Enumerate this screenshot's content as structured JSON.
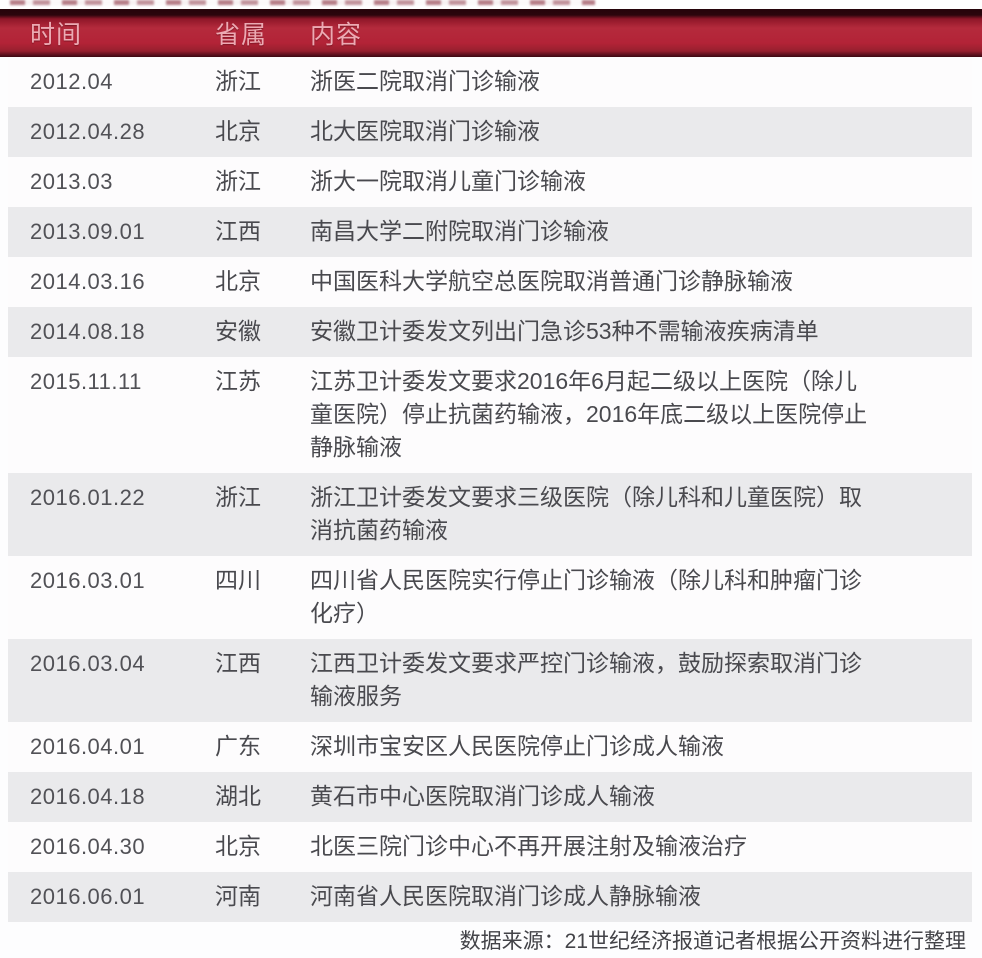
{
  "colors": {
    "header_bar": "#b42a3c",
    "header_bar_edge": "#2c050c",
    "header_text": "#ecaab3",
    "row_base": "#fdfcfd",
    "row_alt": "#eaeaec",
    "body_text": "#49494e",
    "source_text": "#434348"
  },
  "chart_data": {
    "type": "table",
    "columns": [
      "时间",
      "省属",
      "内容"
    ],
    "rows": [
      {
        "date": "2012.04",
        "province": "浙江",
        "content": "浙医二院取消门诊输液"
      },
      {
        "date": "2012.04.28",
        "province": "北京",
        "content": "北大医院取消门诊输液"
      },
      {
        "date": "2013.03",
        "province": "浙江",
        "content": "浙大一院取消儿童门诊输液"
      },
      {
        "date": "2013.09.01",
        "province": "江西",
        "content": "南昌大学二附院取消门诊输液"
      },
      {
        "date": "2014.03.16",
        "province": "北京",
        "content": "中国医科大学航空总医院取消普通门诊静脉输液"
      },
      {
        "date": "2014.08.18",
        "province": "安徽",
        "content": "安徽卫计委发文列出门急诊53种不需输液疾病清单"
      },
      {
        "date": "2015.11.11",
        "province": "江苏",
        "content": "江苏卫计委发文要求2016年6月起二级以上医院（除儿童医院）停止抗菌药输液，2016年底二级以上医院停止静脉输液"
      },
      {
        "date": "2016.01.22",
        "province": "浙江",
        "content": "浙江卫计委发文要求三级医院（除儿科和儿童医院）取消抗菌药输液"
      },
      {
        "date": "2016.03.01",
        "province": "四川",
        "content": "四川省人民医院实行停止门诊输液（除儿科和肿瘤门诊化疗）"
      },
      {
        "date": "2016.03.04",
        "province": "江西",
        "content": "江西卫计委发文要求严控门诊输液，鼓励探索取消门诊输液服务"
      },
      {
        "date": "2016.04.01",
        "province": "广东",
        "content": "深圳市宝安区人民医院停止门诊成人输液"
      },
      {
        "date": "2016.04.18",
        "province": "湖北",
        "content": "黄石市中心医院取消门诊成人输液"
      },
      {
        "date": "2016.04.30",
        "province": "北京",
        "content": "北医三院门诊中心不再开展注射及输液治疗"
      },
      {
        "date": "2016.06.01",
        "province": "河南",
        "content": "河南省人民医院取消门诊成人静脉输液"
      }
    ],
    "source_note": "数据来源：21世纪经济报道记者根据公开资料进行整理",
    "layout": {
      "zebra_striping": true,
      "first_row_shade": "base",
      "header_style": "dark-red-bar",
      "source_position": "bottom-right"
    }
  }
}
